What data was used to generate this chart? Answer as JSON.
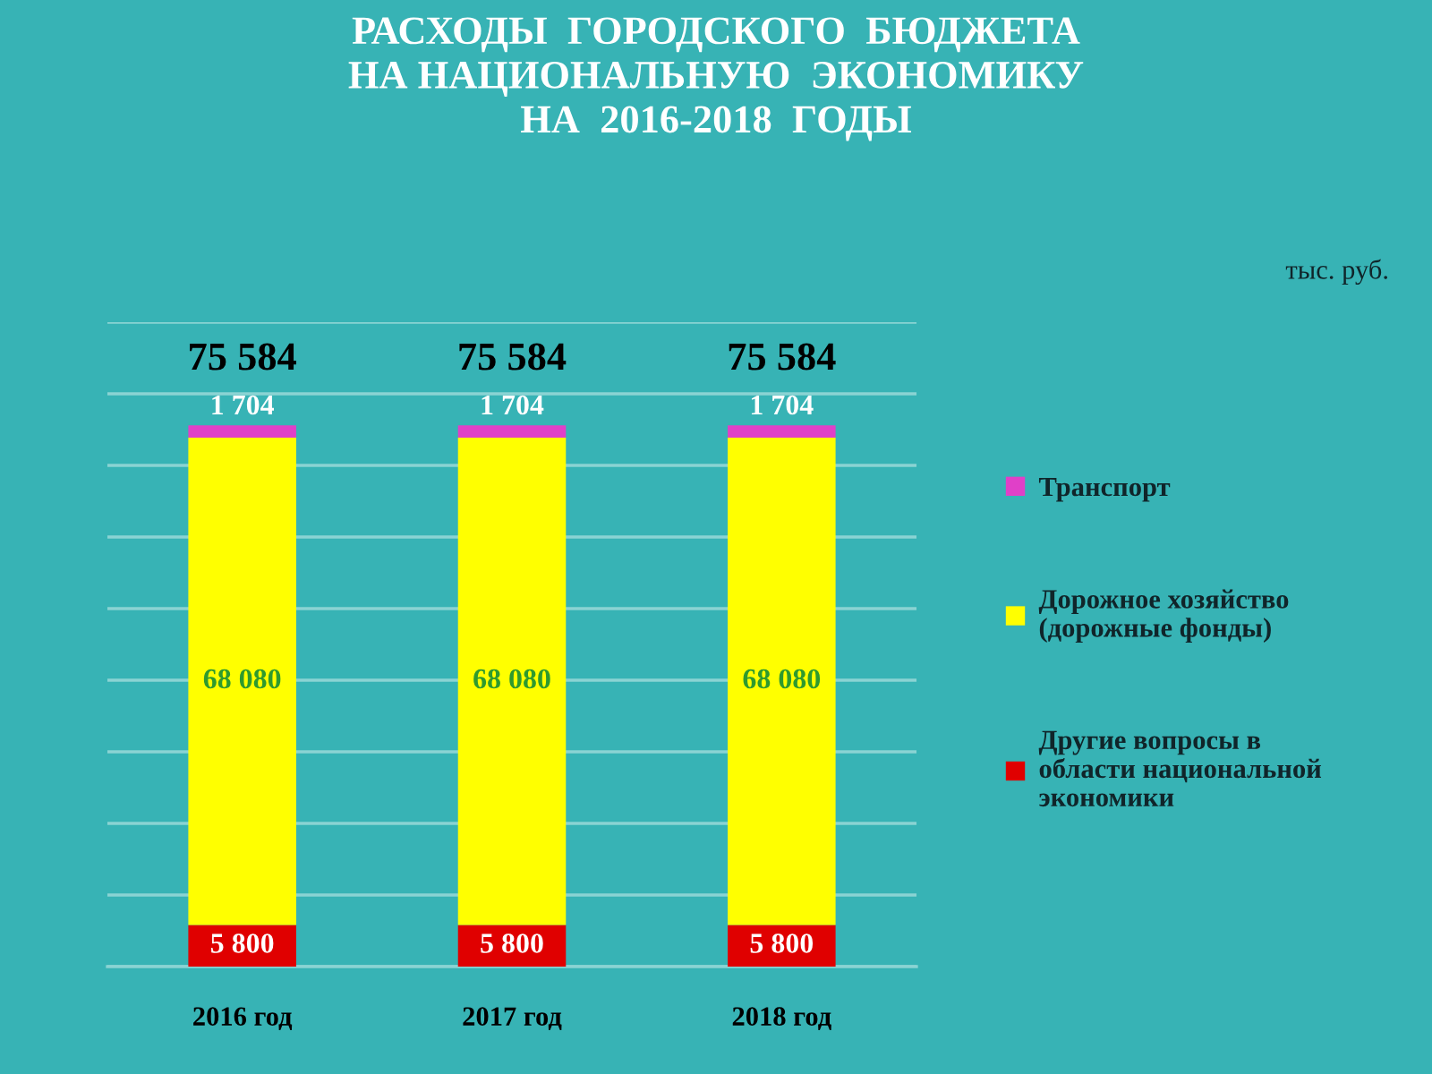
{
  "chart_data": {
    "type": "bar",
    "title": "РАСХОДЫ  ГОРОДСКОГО  БЮДЖЕТА\nНА НАЦИОНАЛЬНУЮ  ЭКОНОМИКУ\nНА  2016-2018  ГОДЫ",
    "categories": [
      "2016 год",
      "2017 год",
      "2018 год"
    ],
    "stacked": true,
    "series": [
      {
        "name": "Другие вопросы в\nобласти национальной\nэкономики",
        "color": "#e00000",
        "values": [
          5800,
          5800,
          5800
        ],
        "value_labels": [
          "5 800",
          "5 800",
          "5 800"
        ]
      },
      {
        "name": "Дорожное хозяйство\n(дорожные фонды)",
        "color": "#ffff00",
        "values": [
          68080,
          68080,
          68080
        ],
        "value_labels": [
          "68 080",
          "68 080",
          "68 080"
        ]
      },
      {
        "name": "Транспорт",
        "color": "#e040c8",
        "values": [
          1704,
          1704,
          1704
        ],
        "value_labels": [
          "1 704",
          "1 704",
          "1 704"
        ]
      }
    ],
    "totals": [
      "75 584",
      "75 584",
      "75 584"
    ],
    "ylim": [
      0,
      90000
    ],
    "yticks": [
      0,
      10000,
      20000,
      30000,
      40000,
      50000,
      60000,
      70000,
      80000,
      90000
    ],
    "tick_labels": "x",
    "grid": "y",
    "legend": "right",
    "annotations": [
      "тыс. руб."
    ]
  }
}
